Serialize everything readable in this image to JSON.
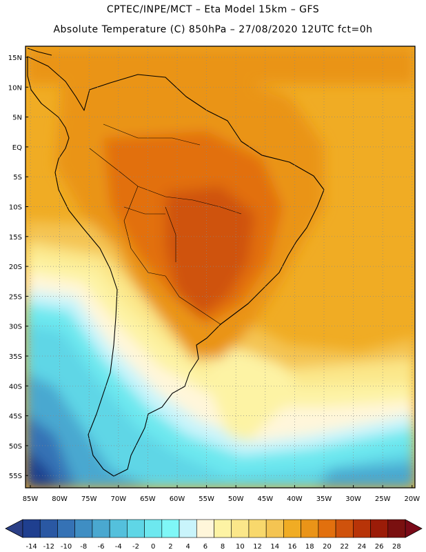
{
  "header": {
    "line1": "CPTEC/INPE/MCT –  Eta Model 15km – GFS",
    "line2": "Absolute Temperature (C) 850hPa – 27/08/2020 12UTC fct=0h"
  },
  "map": {
    "lat_labels": [
      "15N",
      "10N",
      "5N",
      "EQ",
      "5S",
      "10S",
      "15S",
      "20S",
      "25S",
      "30S",
      "35S",
      "40S",
      "45S",
      "50S",
      "55S"
    ],
    "lon_labels": [
      "85W",
      "80W",
      "75W",
      "70W",
      "65W",
      "60W",
      "55W",
      "50W",
      "45W",
      "40W",
      "35W",
      "30W",
      "25W",
      "20W"
    ],
    "grid": true
  },
  "colorbar": {
    "labels": [
      "-14",
      "-12",
      "-10",
      "-8",
      "-6",
      "-4",
      "-2",
      "0",
      "2",
      "4",
      "6",
      "8",
      "10",
      "12",
      "14",
      "16",
      "18",
      "20",
      "22",
      "24",
      "26",
      "28"
    ],
    "colors": [
      "#1f3f8f",
      "#2a58a3",
      "#3572b5",
      "#3f8ec3",
      "#4aa8d0",
      "#54c0dc",
      "#5fd6e6",
      "#6de8ef",
      "#7ff7f7",
      "#c9f4fb",
      "#fff6da",
      "#fdf3a4",
      "#fbe78a",
      "#f8d86c",
      "#f4c452",
      "#f0ac24",
      "#ea9418",
      "#e2700e",
      "#cf520c",
      "#b83408",
      "#9b1c08",
      "#7a1010"
    ],
    "arrow_low_color": "#2b3f86",
    "arrow_high_color": "#7a0a18"
  }
}
